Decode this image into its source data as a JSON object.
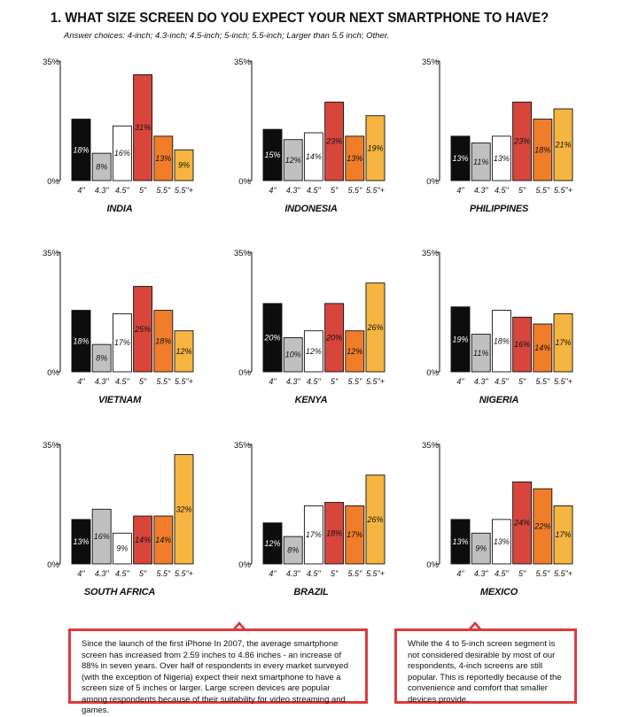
{
  "header": {
    "title": "1. WHAT SIZE SCREEN DO YOU EXPECT YOUR NEXT SMARTPHONE TO HAVE?",
    "subtitle": "Answer choices: 4-inch; 4.3-inch; 4.5-inch; 5-inch; 5.5-inch; Larger than 5.5 inch; Other."
  },
  "axis": {
    "ymax_label": "35%",
    "ymin_label": "0%"
  },
  "colors": {
    "4\"": "#0d0d0d",
    "4.3\"": "#c0c0c0",
    "4.5\"": "#ffffff",
    "5\"": "#d8453a",
    "5.5\"": "#f07d2a",
    "5.5\"+": "#f5b540"
  },
  "chart_data": [
    {
      "type": "bar",
      "title": "INDIA",
      "categories": [
        "4\"",
        "4.3\"",
        "4.5\"",
        "5\"",
        "5.5\"",
        "5.5\"+"
      ],
      "values": [
        18,
        8,
        16,
        31,
        13,
        9
      ],
      "labels": [
        "18%",
        "8%",
        "16%",
        "31%",
        "13%",
        "9%"
      ],
      "ylim": [
        0,
        35
      ]
    },
    {
      "type": "bar",
      "title": "INDONESIA",
      "categories": [
        "4\"",
        "4.3\"",
        "4.5\"",
        "5\"",
        "5.5\"",
        "5.5\"+"
      ],
      "values": [
        15,
        12,
        14,
        23,
        13,
        19
      ],
      "labels": [
        "15%",
        "12%",
        "14%",
        "23%",
        "13%",
        "19%"
      ],
      "ylim": [
        0,
        35
      ]
    },
    {
      "type": "bar",
      "title": "PHILIPPINES",
      "categories": [
        "4\"",
        "4.3\"",
        "4.5\"",
        "5\"",
        "5.5\"",
        "5.5\"+"
      ],
      "values": [
        13,
        11,
        13,
        23,
        18,
        21
      ],
      "labels": [
        "13%",
        "11%",
        "13%",
        "23%",
        "18%",
        "21%"
      ],
      "ylim": [
        0,
        35
      ]
    },
    {
      "type": "bar",
      "title": "VIETNAM",
      "categories": [
        "4\"",
        "4.3\"",
        "4.5\"",
        "5\"",
        "5.5\"",
        "5.5\"+"
      ],
      "values": [
        18,
        8,
        17,
        25,
        18,
        12
      ],
      "labels": [
        "18%",
        "8%",
        "17%",
        "25%",
        "18%",
        "12%"
      ],
      "ylim": [
        0,
        35
      ]
    },
    {
      "type": "bar",
      "title": "KENYA",
      "categories": [
        "4\"",
        "4.3\"",
        "4.5\"",
        "5\"",
        "5.5\"",
        "5.5\"+"
      ],
      "values": [
        20,
        10,
        12,
        20,
        12,
        26
      ],
      "labels": [
        "20%",
        "10%",
        "12%",
        "20%",
        "12%",
        "26%"
      ],
      "ylim": [
        0,
        35
      ]
    },
    {
      "type": "bar",
      "title": "NIGERIA",
      "categories": [
        "4\"",
        "4.3\"",
        "4.5\"",
        "5\"",
        "5.5\"",
        "5.5\"+"
      ],
      "values": [
        19,
        11,
        18,
        16,
        14,
        17
      ],
      "labels": [
        "19%",
        "11%",
        "18%",
        "16%",
        "14%",
        "17%"
      ],
      "ylim": [
        0,
        35
      ]
    },
    {
      "type": "bar",
      "title": "SOUTH AFRICA",
      "categories": [
        "4\"",
        "4.3\"",
        "4.5\"",
        "5\"",
        "5.5\"",
        "5.5\"+"
      ],
      "values": [
        13,
        16,
        9,
        14,
        14,
        32
      ],
      "labels": [
        "13%",
        "16%",
        "9%",
        "14%",
        "14%",
        "32%"
      ],
      "ylim": [
        0,
        35
      ]
    },
    {
      "type": "bar",
      "title": "BRAZIL",
      "categories": [
        "4\"",
        "4.3\"",
        "4.5\"",
        "5\"",
        "5.5\"",
        "5.5\"+"
      ],
      "values": [
        12,
        8,
        17,
        18,
        17,
        26
      ],
      "labels": [
        "12%",
        "8%",
        "17%",
        "18%",
        "17%",
        "26%"
      ],
      "ylim": [
        0,
        35
      ]
    },
    {
      "type": "bar",
      "title": "MEXICO",
      "categories": [
        "4\"",
        "4.3\"",
        "4.5\"",
        "5\"",
        "5.5\"",
        "5.5\"+"
      ],
      "values": [
        13,
        9,
        13,
        24,
        22,
        17
      ],
      "labels": [
        "13%",
        "9%",
        "13%",
        "24%",
        "22%",
        "17%"
      ],
      "ylim": [
        0,
        35
      ]
    }
  ],
  "notes": [
    {
      "text": "Since the launch of the first iPhone In 2007, the average smartphone screen has increased from 2.59 inches to 4.86 inches  - an increase of 88% in seven years. Over half of respondents in every market surveyed (with the exception of Nigeria) expect their next smartphone to have a screen size of 5 inches or larger. Large screen devices are popular among respondents because of their suitability for video streaming and games."
    },
    {
      "text": "While the 4 to 5-inch screen segment is not considered desirable by most of our respondents, 4-inch screens are still popular. This is reportedly because of the convenience and comfort that smaller devices provide."
    }
  ]
}
